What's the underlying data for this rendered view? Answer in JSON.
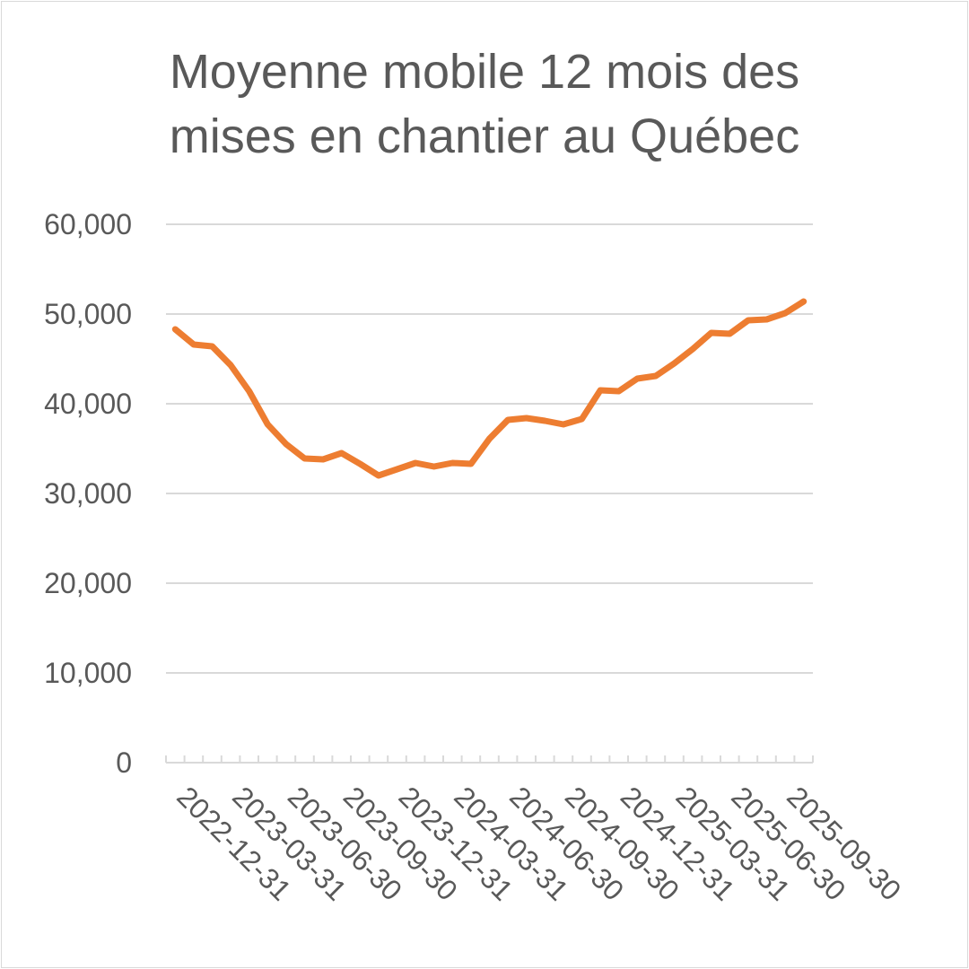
{
  "chart_data": {
    "type": "line",
    "title": "Moyenne mobile 12 mois des mises en chantier au Québec",
    "title_lines": [
      "Moyenne mobile 12 mois des",
      "mises en chantier au Québec"
    ],
    "xlabel": "",
    "ylabel": "",
    "ylim": [
      0,
      60000
    ],
    "yticks": [
      0,
      10000,
      20000,
      30000,
      40000,
      50000,
      60000
    ],
    "ytick_labels": [
      "0",
      "10,000",
      "20,000",
      "30,000",
      "40,000",
      "50,000",
      "60,000"
    ],
    "x_tick_labels": [
      "2022-12-31",
      "2023-03-31",
      "2023-06-30",
      "2023-09-30",
      "2023-12-31",
      "2024-03-31",
      "2024-06-30",
      "2024-09-30",
      "2024-12-31",
      "2025-03-31",
      "2025-06-30",
      "2025-09-30"
    ],
    "x_label_every": 3,
    "grid": true,
    "legend": "none",
    "series": [
      {
        "color": "#ed7d31",
        "values": [
          48300,
          46600,
          46400,
          44300,
          41400,
          37700,
          35500,
          33900,
          33800,
          34500,
          33300,
          32000,
          32700,
          33400,
          33000,
          33400,
          33300,
          36100,
          38200,
          38400,
          38100,
          37700,
          38300,
          41500,
          41400,
          42800,
          43100,
          44500,
          46100,
          47900,
          47800,
          49300,
          49400,
          50100,
          51400
        ]
      }
    ]
  }
}
